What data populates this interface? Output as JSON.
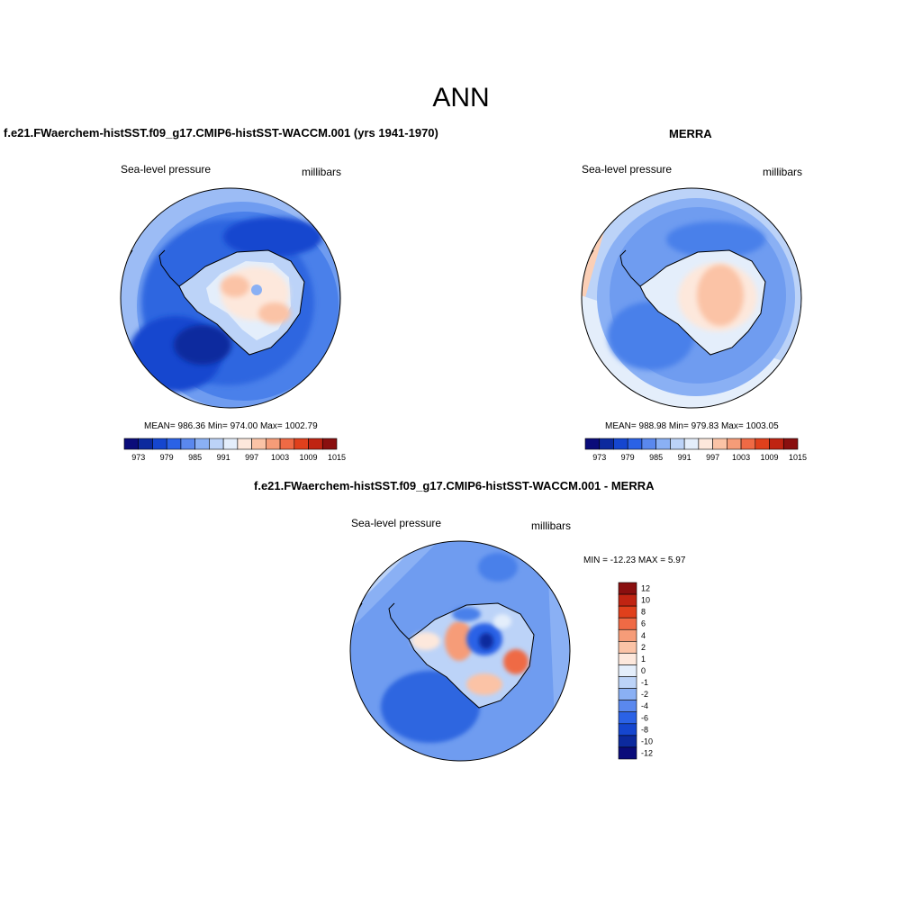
{
  "figure": {
    "title": "ANN"
  },
  "panels": {
    "model": {
      "title": "f.e21.FWaerchem-histSST.f09_g17.CMIP6-histSST-WACCM.001 (yrs 1941-1970)",
      "variable": "Sea-level pressure",
      "units": "millibars",
      "stats": "MEAN= 986.36  Min= 974.00  Max= 1002.79"
    },
    "obs": {
      "title": "MERRA",
      "variable": "Sea-level pressure",
      "units": "millibars",
      "stats": "MEAN= 988.98  Min= 979.83  Max= 1003.05"
    },
    "diff": {
      "title": "f.e21.FWaerchem-histSST.f09_g17.CMIP6-histSST-WACCM.001 - MERRA",
      "variable": "Sea-level pressure",
      "units": "millibars",
      "stats": "MIN = -12.23 MAX =   5.97"
    }
  },
  "colorbars": {
    "absolute": {
      "colors": [
        "#0a0c7a",
        "#0c2a9e",
        "#1546cf",
        "#2b62e6",
        "#5a88ee",
        "#8ab0f4",
        "#bcd3f8",
        "#e4eefb",
        "#fde8dc",
        "#fbc3a6",
        "#f69c78",
        "#ef6a45",
        "#e0401c",
        "#c02412",
        "#8a0f0f"
      ],
      "tick_labels": [
        "973",
        "979",
        "985",
        "991",
        "997",
        "1003",
        "1009",
        "1015"
      ]
    },
    "difference": {
      "colors": [
        "#0a0c7a",
        "#0c2a9e",
        "#1546cf",
        "#2b62e6",
        "#5a88ee",
        "#8ab0f4",
        "#bcd3f8",
        "#e4eefb",
        "#fde8dc",
        "#fbc3a6",
        "#f69c78",
        "#ef6a45",
        "#e0401c",
        "#c02412",
        "#8a0f0f"
      ],
      "tick_labels": [
        "12",
        "10",
        "8",
        "6",
        "4",
        "2",
        "1",
        "0",
        "-1",
        "-2",
        "-4",
        "-6",
        "-8",
        "-10",
        "-12"
      ]
    }
  },
  "colors": {
    "ocean_model": "#2e66e0",
    "ocean_obs": "#6f9cf0",
    "ocean_diff": "#4f86ec",
    "coast": "#000000"
  }
}
